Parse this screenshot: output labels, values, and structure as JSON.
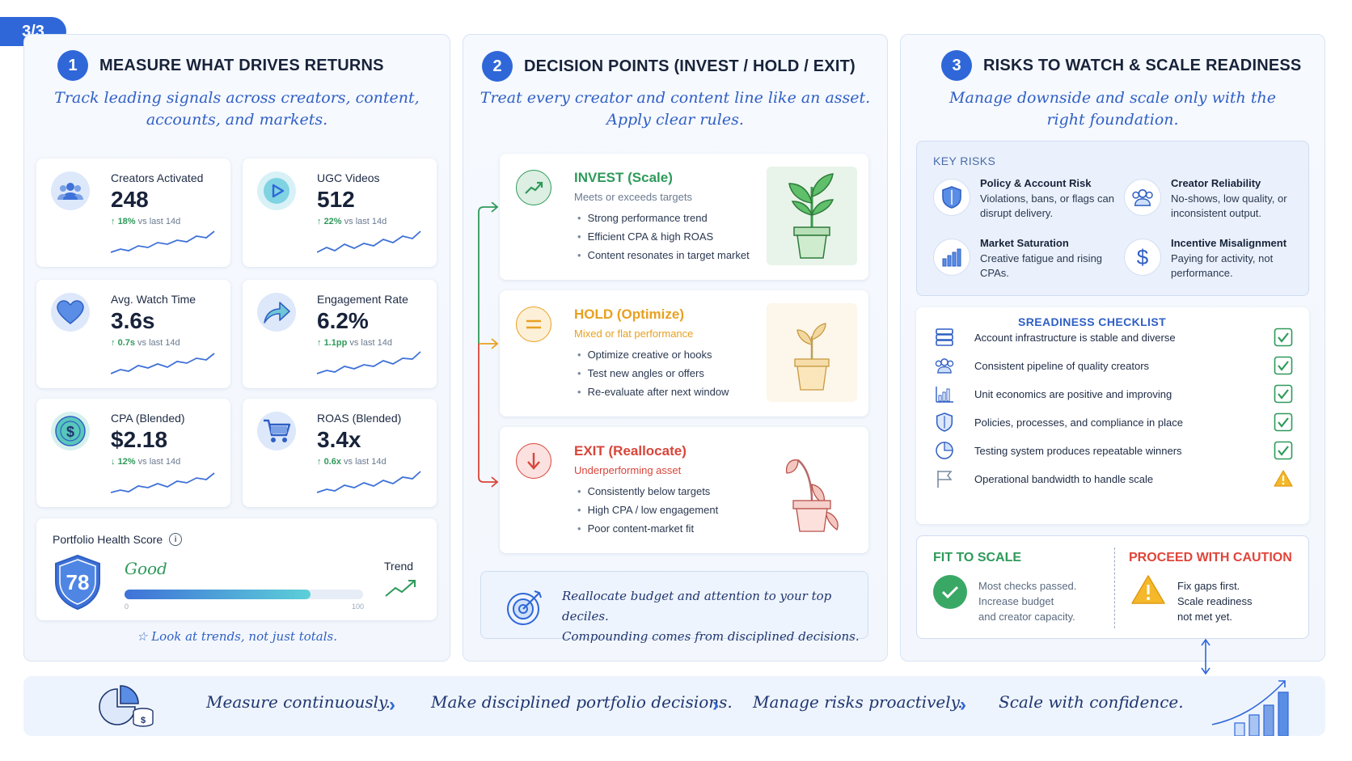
{
  "page_tag": "3/3",
  "panel1": {
    "number": "1",
    "title": "MEASURE WHAT DRIVES RETURNS",
    "subtitle_line1": "Track leading signals across creators, content,",
    "subtitle_line2": "accounts, and markets.",
    "metrics": [
      {
        "label": "Creators Activated",
        "value": "248",
        "delta": "18%",
        "delta_suffix": "vs last 14d",
        "arrow": "↑",
        "icon": "users-icon"
      },
      {
        "label": "UGC Videos",
        "value": "512",
        "delta": "22%",
        "delta_suffix": "vs last 14d",
        "arrow": "↑",
        "icon": "play-icon"
      },
      {
        "label": "Avg. Watch Time",
        "value": "3.6s",
        "delta": "0.7s",
        "delta_suffix": "vs last 14d",
        "arrow": "↑",
        "icon": "heart-icon"
      },
      {
        "label": "Engagement Rate",
        "value": "6.2%",
        "delta": "1.1pp",
        "delta_suffix": "vs last 14d",
        "arrow": "↑",
        "icon": "share-icon"
      },
      {
        "label": "CPA (Blended)",
        "value": "$2.18",
        "delta": "12%",
        "delta_suffix": "vs last 14d",
        "arrow": "↓",
        "icon": "dollar-icon"
      },
      {
        "label": "ROAS (Blended)",
        "value": "3.4x",
        "delta": "0.6x",
        "delta_suffix": "vs last 14d",
        "arrow": "↑",
        "icon": "cart-icon"
      }
    ],
    "health": {
      "label": "Portfolio Health Score",
      "score": "78",
      "score_fraction": 0.78,
      "status": "Good",
      "trend_label": "Trend",
      "scale_min": "0",
      "scale_max": "100"
    },
    "footnote": "Look at trends, not just totals."
  },
  "panel2": {
    "number": "2",
    "title": "DECISION POINTS (INVEST / HOLD / EXIT)",
    "subtitle_line1": "Treat every creator and content line like an asset.",
    "subtitle_line2": "Apply clear rules.",
    "invest": {
      "title": "INVEST (Scale)",
      "subtitle": "Meets or exceeds targets",
      "items": [
        "Strong performance trend",
        "Efficient CPA & high ROAS",
        "Content resonates in target market"
      ],
      "color": "#2e9a5a"
    },
    "hold": {
      "title": "HOLD (Optimize)",
      "subtitle": "Mixed or flat performance",
      "items": [
        "Optimize creative or hooks",
        "Test new angles or offers",
        "Re-evaluate after next window"
      ],
      "color": "#e8a020"
    },
    "exit": {
      "title": "EXIT (Reallocate)",
      "subtitle": "Underperforming asset",
      "items": [
        "Consistently below targets",
        "High CPA / low engagement",
        "Poor content-market fit"
      ],
      "color": "#d8453a"
    },
    "callout_line1": "Reallocate budget and attention to your top deciles.",
    "callout_line2": "Compounding comes from disciplined decisions."
  },
  "panel3": {
    "number": "3",
    "title": "RISKS TO WATCH & SCALE READINESS",
    "subtitle_line1": "Manage downside and scale only with the",
    "subtitle_line2": "right foundation.",
    "key_risks_heading": "KEY RISKS",
    "risks": [
      {
        "title": "Policy & Account Risk",
        "desc": "Violations, bans, or flags can disrupt delivery.",
        "icon": "shield-icon"
      },
      {
        "title": "Creator Reliability",
        "desc": "No-shows, low quality, or inconsistent output.",
        "icon": "users-icon"
      },
      {
        "title": "Market Saturation",
        "desc": "Creative fatigue and rising CPAs.",
        "icon": "bar-chart-icon"
      },
      {
        "title": "Incentive Misalignment",
        "desc": "Paying for activity, not performance.",
        "icon": "dollar-icon"
      }
    ],
    "checklist_heading": "SREADINESS CHECKLIST",
    "checklist": [
      {
        "text": "Account infrastructure is stable and diverse",
        "status": "check",
        "icon": "server-icon"
      },
      {
        "text": "Consistent pipeline of quality creators",
        "status": "check",
        "icon": "users-icon"
      },
      {
        "text": "Unit economics are positive and improving",
        "status": "check",
        "icon": "bar-chart-icon"
      },
      {
        "text": "Policies, processes, and compliance in place",
        "status": "check",
        "icon": "shield-icon"
      },
      {
        "text": "Testing system produces repeatable winners",
        "status": "check",
        "icon": "pie-icon"
      },
      {
        "text": "Operational bandwidth to handle scale",
        "status": "warning",
        "icon": "flag-icon"
      }
    ],
    "fit_title": "FIT TO SCALE",
    "fit_text": [
      "Most checks passed.",
      "Increase budget",
      "and creator capacity."
    ],
    "caution_title": "PROCEED WITH CAUTION",
    "caution_text": [
      "Fix gaps first.",
      "Scale readiness",
      "not met yet."
    ]
  },
  "bottom_steps": [
    "Measure continuously.",
    "Make disciplined portfolio decisions.",
    "Manage risks proactively.",
    "Scale with confidence."
  ],
  "colors": {
    "accent": "#2f67d9",
    "green": "#2e9a5a",
    "amber": "#e8a020",
    "red": "#d8453a"
  }
}
